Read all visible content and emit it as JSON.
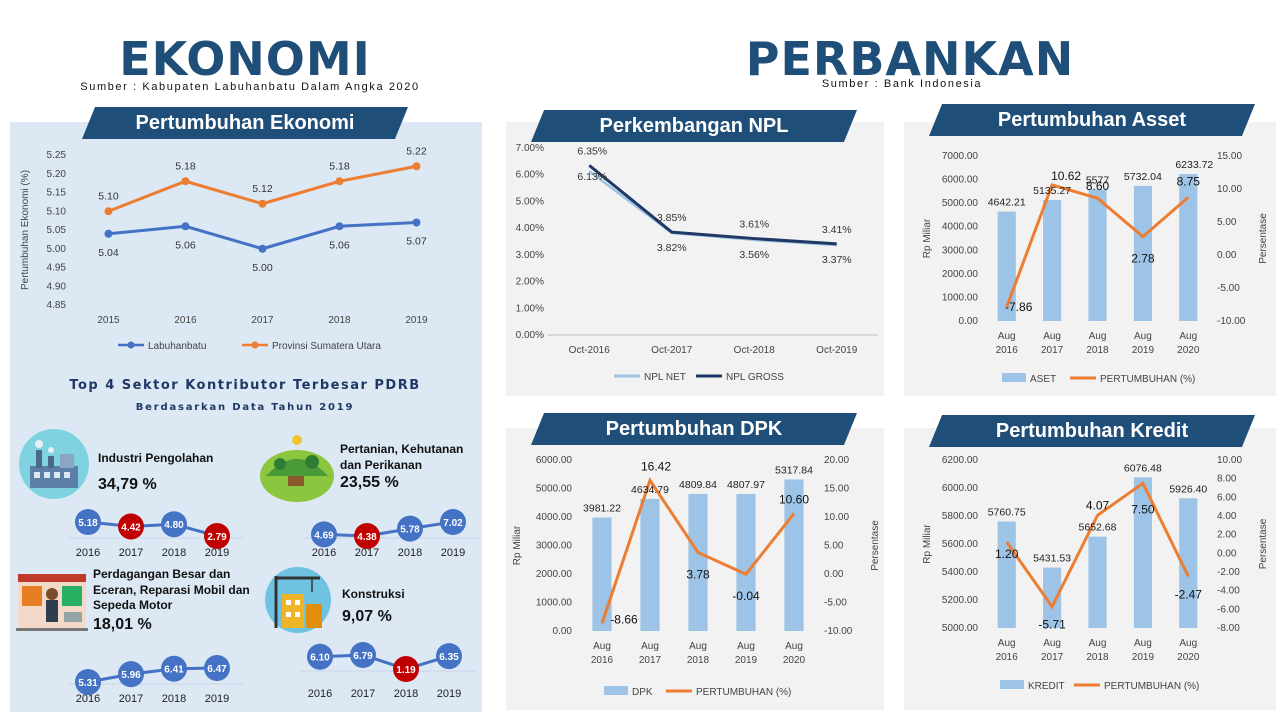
{
  "header": {
    "left_title": "EKONOMI",
    "left_source": "Sumber : Kabupaten Labuhanbatu Dalam Angka 2020",
    "right_title": "PERBANKAN",
    "right_source": "Sumber : Bank Indonesia"
  },
  "colors": {
    "navy": "#1f4e79",
    "blue": "#4472c4",
    "orange": "#ed7d31",
    "bar": "#9dc3e6",
    "red": "#c00000",
    "light_line": "#9dc3e6",
    "dark_line": "#203864"
  },
  "top4": {
    "title": "Top 4 Sektor Kontributor Terbesar PDRB",
    "subtitle": "Berdasarkan Data Tahun 2019",
    "sectors": [
      {
        "name": "Industri Pengolahan",
        "pct": "34,79 %",
        "icon": "factory-icon",
        "values": [
          "5.18",
          "4.42",
          "4.80",
          "2.79"
        ],
        "red": [
          false,
          true,
          false,
          true
        ],
        "years": [
          "2016",
          "2017",
          "2018",
          "2019"
        ]
      },
      {
        "name": "Pertanian, Kehutanan dan Perikanan",
        "pct": "23,55 %",
        "icon": "farm-icon",
        "values": [
          "4.69",
          "4.38",
          "5.78",
          "7.02"
        ],
        "red": [
          false,
          true,
          false,
          false
        ],
        "years": [
          "2016",
          "2017",
          "2018",
          "2019"
        ]
      },
      {
        "name": "Perdagangan Besar dan Eceran, Reparasi Mobil dan Sepeda Motor",
        "pct": "18,01 %",
        "icon": "shop-icon",
        "values": [
          "5.31",
          "5.96",
          "6.41",
          "6.47"
        ],
        "red": [
          false,
          false,
          false,
          false
        ],
        "years": [
          "2016",
          "2017",
          "2018",
          "2019"
        ]
      },
      {
        "name": "Konstruksi",
        "pct": "9,07 %",
        "icon": "construction-icon",
        "values": [
          "6.10",
          "6.79",
          "1.19",
          "6.35"
        ],
        "red": [
          false,
          false,
          true,
          false
        ],
        "years": [
          "2016",
          "2017",
          "2018",
          "2019"
        ]
      }
    ]
  },
  "chart_data": [
    {
      "id": "ekonomi",
      "type": "line",
      "title": "Pertumbuhan Ekonomi",
      "ylabel": "Pertumbuhan Ekonomi (%)",
      "ylim": [
        4.85,
        5.25
      ],
      "yticks": [
        "4.85",
        "4.90",
        "4.95",
        "5.00",
        "5.05",
        "5.10",
        "5.15",
        "5.20",
        "5.25"
      ],
      "categories": [
        "2015",
        "2016",
        "2017",
        "2018",
        "2019"
      ],
      "series": [
        {
          "name": "Labuhanbatu",
          "values": [
            5.04,
            5.06,
            5.0,
            5.06,
            5.07
          ],
          "labels": [
            "5.04",
            "5.06",
            "5.00",
            "5.06",
            "5.07"
          ]
        },
        {
          "name": "Provinsi Sumatera Utara",
          "values": [
            5.1,
            5.18,
            5.12,
            5.18,
            5.22
          ],
          "labels": [
            "5.10",
            "5.18",
            "5.12",
            "5.18",
            "5.22"
          ]
        }
      ]
    },
    {
      "id": "npl",
      "type": "line",
      "title": "Perkembangan NPL",
      "ylim": [
        0,
        7
      ],
      "yticks": [
        "0.00%",
        "1.00%",
        "2.00%",
        "3.00%",
        "4.00%",
        "5.00%",
        "6.00%",
        "7.00%"
      ],
      "categories": [
        "Oct-2016",
        "Oct-2017",
        "Oct-2018",
        "Oct-2019"
      ],
      "series": [
        {
          "name": "NPL NET",
          "values": [
            6.13,
            3.82,
            3.56,
            3.37
          ],
          "labels": [
            "6.13%",
            "3.82%",
            "3.56%",
            "3.37%"
          ]
        },
        {
          "name": "NPL GROSS",
          "values": [
            6.35,
            3.85,
            3.61,
            3.41
          ],
          "labels": [
            "6.35%",
            "3.85%",
            "3.61%",
            "3.41%"
          ]
        }
      ]
    },
    {
      "id": "asset",
      "type": "bar",
      "title": "Pertumbuhan Asset",
      "ylabel": "Rp Miliar",
      "y2label": "Persentase",
      "ylim": [
        0,
        7000
      ],
      "y2lim": [
        -10,
        15
      ],
      "yticks": [
        "0.00",
        "1000.00",
        "2000.00",
        "3000.00",
        "4000.00",
        "5000.00",
        "6000.00",
        "7000.00"
      ],
      "y2ticks": [
        "-10.00",
        "-5.00",
        "0.00",
        "5.00",
        "10.00",
        "15.00"
      ],
      "categories": [
        [
          "Aug",
          "2016"
        ],
        [
          "Aug",
          "2017"
        ],
        [
          "Aug",
          "2018"
        ],
        [
          "Aug",
          "2019"
        ],
        [
          "Aug",
          "2020"
        ]
      ],
      "bars": {
        "name": "ASET",
        "values": [
          4642.21,
          5135.27,
          5577,
          5732.04,
          6233.72
        ],
        "labels": [
          "4642.21",
          "5135.27",
          "5577",
          "5732.04",
          "6233.72"
        ]
      },
      "line": {
        "name": "PERTUMBUHAN (%)",
        "values": [
          -7.86,
          10.62,
          8.6,
          2.78,
          8.75
        ],
        "labels": [
          "-7.86",
          "10.62",
          "8.60",
          "2.78",
          "8.75"
        ]
      }
    },
    {
      "id": "dpk",
      "type": "bar",
      "title": "Pertumbuhan DPK",
      "ylabel": "Rp Miliar",
      "y2label": "Persentase",
      "ylim": [
        0,
        6000
      ],
      "y2lim": [
        -10,
        20
      ],
      "yticks": [
        "0.00",
        "1000.00",
        "2000.00",
        "3000.00",
        "4000.00",
        "5000.00",
        "6000.00"
      ],
      "y2ticks": [
        "-10.00",
        "-5.00",
        "0.00",
        "5.00",
        "10.00",
        "15.00",
        "20.00"
      ],
      "categories": [
        [
          "Aug",
          "2016"
        ],
        [
          "Aug",
          "2017"
        ],
        [
          "Aug",
          "2018"
        ],
        [
          "Aug",
          "2019"
        ],
        [
          "Aug",
          "2020"
        ]
      ],
      "bars": {
        "name": "DPK",
        "values": [
          3981.22,
          4634.79,
          4809.84,
          4807.97,
          5317.84
        ],
        "labels": [
          "3981.22",
          "4634.79",
          "4809.84",
          "4807.97",
          "5317.84"
        ]
      },
      "line": {
        "name": "PERTUMBUHAN (%)",
        "values": [
          -8.66,
          16.42,
          3.78,
          -0.04,
          10.6
        ],
        "labels": [
          "-8.66",
          "16.42",
          "3.78",
          "-0.04",
          "10.60"
        ]
      }
    },
    {
      "id": "kredit",
      "type": "bar",
      "title": "Pertumbuhan Kredit",
      "ylabel": "Rp Miliar",
      "y2label": "Persentase",
      "ylim": [
        5000,
        6200
      ],
      "y2lim": [
        -8,
        10
      ],
      "yticks": [
        "5000.00",
        "5200.00",
        "5400.00",
        "5600.00",
        "5800.00",
        "6000.00",
        "6200.00"
      ],
      "y2ticks": [
        "-8.00",
        "-6.00",
        "-4.00",
        "-2.00",
        "0.00",
        "2.00",
        "4.00",
        "6.00",
        "8.00",
        "10.00"
      ],
      "categories": [
        [
          "Aug",
          "2016"
        ],
        [
          "Aug",
          "2017"
        ],
        [
          "Aug",
          "2018"
        ],
        [
          "Aug",
          "2019"
        ],
        [
          "Aug",
          "2020"
        ]
      ],
      "bars": {
        "name": "KREDIT",
        "values": [
          5760.75,
          5431.53,
          5652.68,
          6076.48,
          5926.4
        ],
        "labels": [
          "5760.75",
          "5431.53",
          "5652.68",
          "6076.48",
          "5926.40"
        ]
      },
      "line": {
        "name": "PERTUMBUHAN (%)",
        "values": [
          1.2,
          -5.71,
          4.07,
          7.5,
          -2.47
        ],
        "labels": [
          "1.20",
          "-5.71",
          "4.07",
          "7.50",
          "-2.47"
        ]
      }
    }
  ]
}
